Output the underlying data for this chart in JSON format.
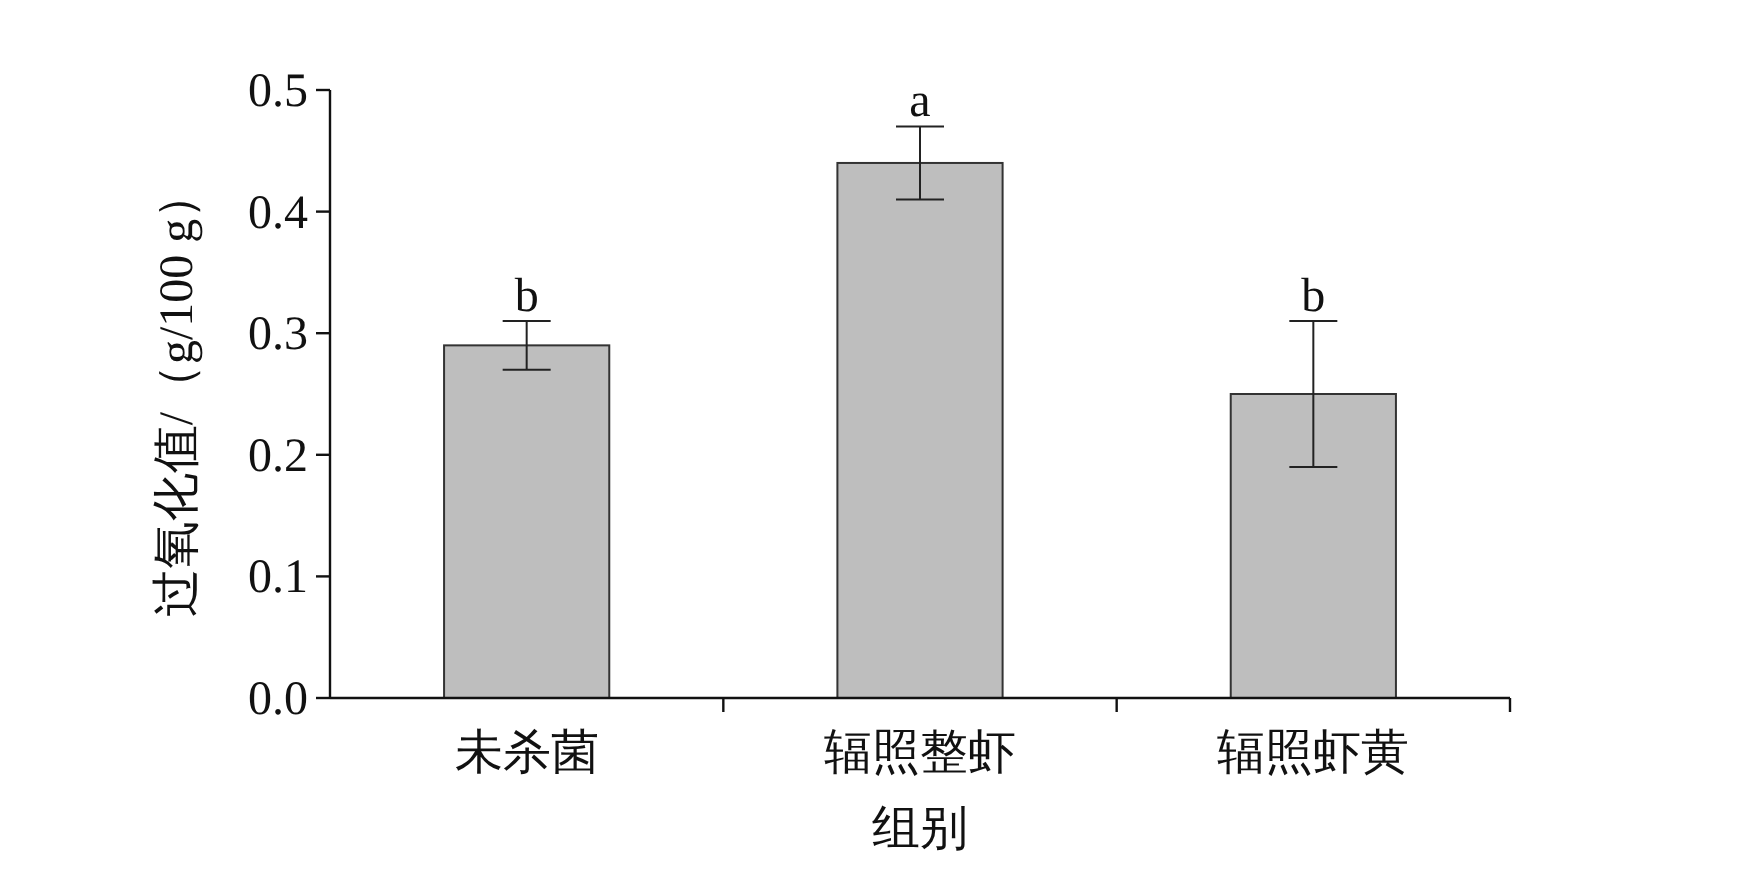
{
  "chart_data": {
    "type": "bar",
    "xlabel": "组别",
    "ylabel": "过氧化值/（g/100 g）",
    "categories": [
      "未杀菌",
      "辐照整虾",
      "辐照虾黄"
    ],
    "values": [
      0.29,
      0.44,
      0.25
    ],
    "errors": [
      0.02,
      0.03,
      0.06
    ],
    "color": "#bebebe",
    "ylim": [
      0,
      0.5
    ],
    "yticks": [
      {
        "value": 0,
        "label": "0.0"
      },
      0.1,
      0.2,
      0.3,
      0.4,
      0.5
    ],
    "grid": false,
    "annotations": [
      {
        "text": "b",
        "x": "未杀菌",
        "y": 0.31
      },
      {
        "text": "a",
        "x": "辐照整虾",
        "y": 0.47
      },
      {
        "text": "b",
        "x": "辐照虾黄",
        "y": 0.31
      }
    ]
  }
}
